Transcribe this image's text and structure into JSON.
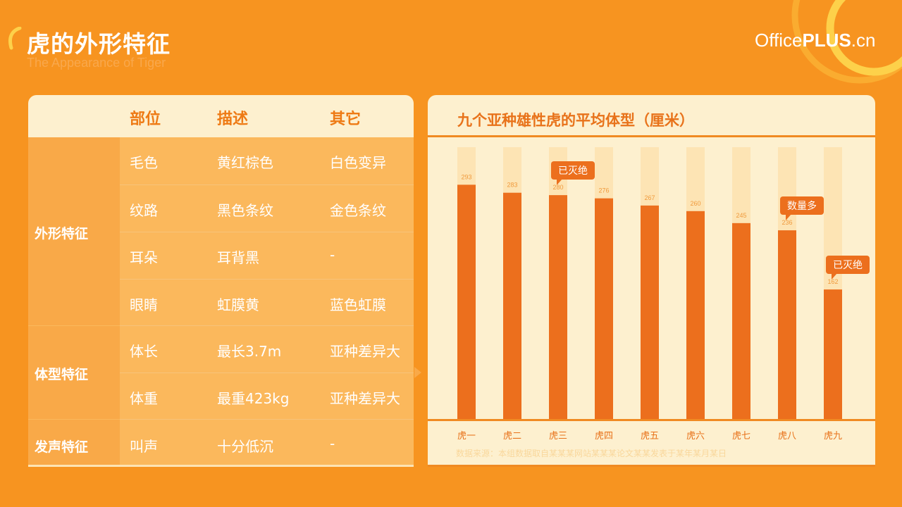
{
  "header": {
    "title": "虎的外形特征",
    "subtitle": "The Appearance of Tiger",
    "brand_prefix": "Office",
    "brand_bold": "PLUS",
    "brand_suffix": ".cn"
  },
  "colors": {
    "background": "#f79420",
    "accent": "#ec6f1d",
    "panel": "#fdf0cf"
  },
  "table": {
    "headers": [
      "部位",
      "描述",
      "其它"
    ],
    "categories": [
      "外形特征",
      "体型特征",
      "发声特征"
    ],
    "rows": [
      {
        "part": "毛色",
        "desc": "黄红棕色",
        "other": "白色变异"
      },
      {
        "part": "纹路",
        "desc": "黑色条纹",
        "other": "金色条纹"
      },
      {
        "part": "耳朵",
        "desc": "耳背黑",
        "other": "-"
      },
      {
        "part": "眼睛",
        "desc": "虹膜黄",
        "other": "蓝色虹膜"
      },
      {
        "part": "体长",
        "desc": "最长3.7m",
        "other": "亚种差异大"
      },
      {
        "part": "体重",
        "desc": "最重423kg",
        "other": "亚种差异大"
      },
      {
        "part": "叫声",
        "desc": "十分低沉",
        "other": "-"
      }
    ]
  },
  "chart_data": {
    "type": "bar",
    "title": "九个亚种雄性虎的平均体型（厘米）",
    "categories": [
      "虎一",
      "虎二",
      "虎三",
      "虎四",
      "虎五",
      "虎六",
      "虎七",
      "虎八",
      "虎九"
    ],
    "values": [
      293,
      283,
      280,
      276,
      267,
      260,
      245,
      236,
      162
    ],
    "ylim": [
      0,
      340
    ],
    "grid": false,
    "legend": "none",
    "annotations": [
      {
        "category": "虎三",
        "text": "已灭绝"
      },
      {
        "category": "虎八",
        "text": "数量多"
      },
      {
        "category": "虎九",
        "text": "已灭绝"
      }
    ],
    "source": "数据来源：本组数据取自某某某网站某某某论文某某发表于某年某月某日"
  }
}
